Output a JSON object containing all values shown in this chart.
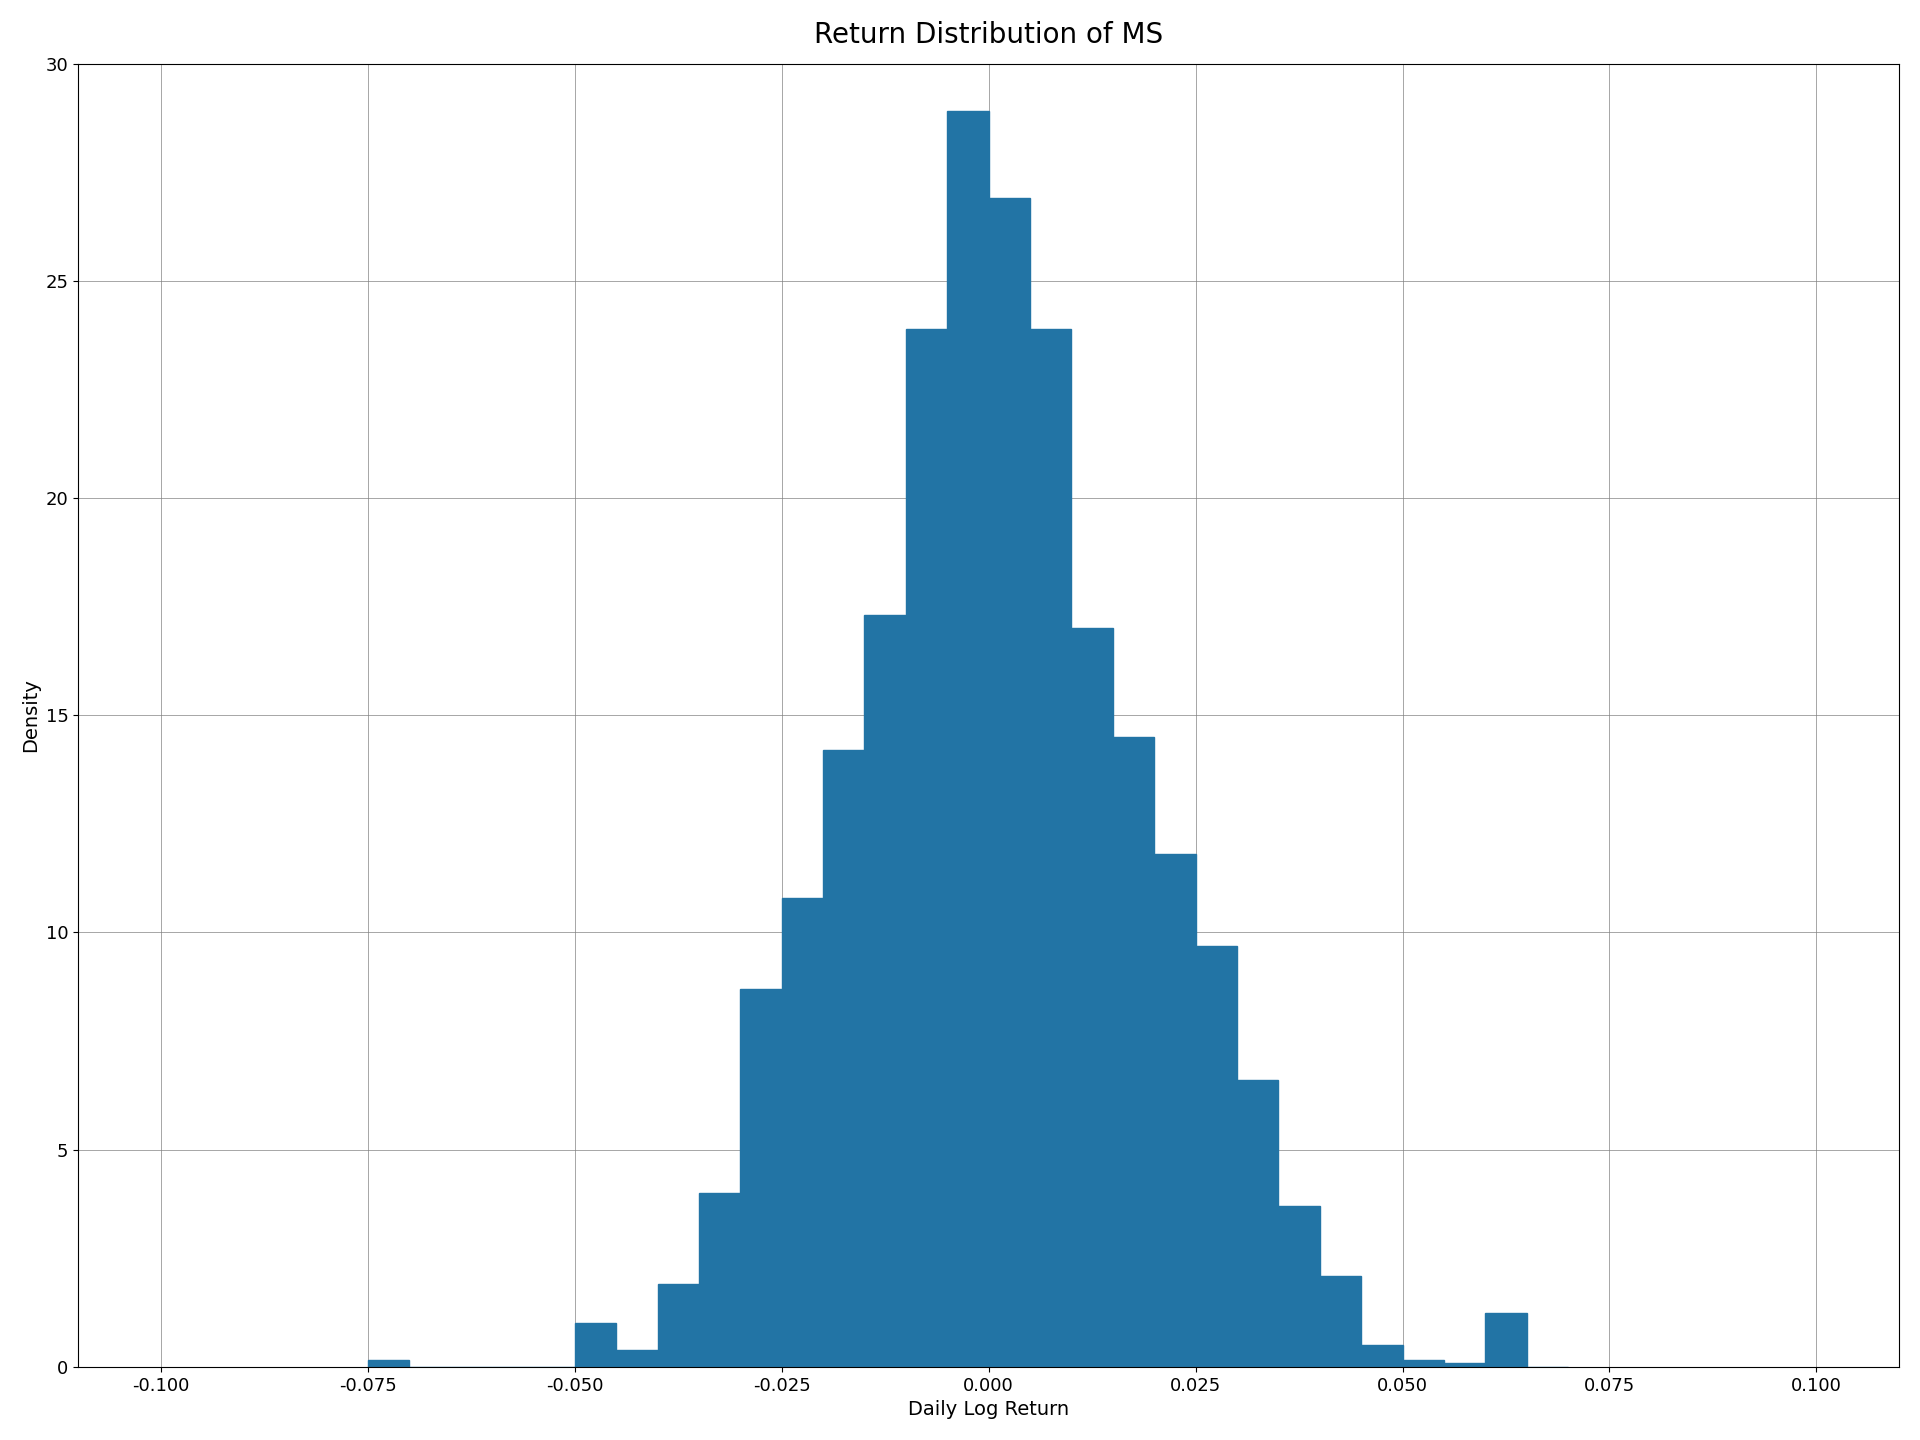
{
  "title": "Return Distribution of MS",
  "xlabel": "Daily Log Return",
  "ylabel": "Density",
  "bar_color": "#2274a5",
  "xlim": [
    -0.11,
    0.11
  ],
  "ylim": [
    0,
    30
  ],
  "bin_width": 0.005,
  "bins_left": [
    -0.075,
    -0.07,
    -0.065,
    -0.06,
    -0.055,
    -0.05,
    -0.045,
    -0.04,
    -0.035,
    -0.03,
    -0.025,
    -0.02,
    -0.015,
    -0.01,
    -0.005,
    0.0,
    0.005,
    0.01,
    0.015,
    0.02,
    0.025,
    0.03,
    0.035,
    0.04,
    0.045,
    0.05,
    0.055,
    0.06,
    0.065
  ],
  "densities": [
    0.15,
    0.0,
    0.0,
    0.0,
    0.0,
    1.0,
    0.4,
    1.9,
    4.0,
    8.7,
    10.8,
    14.2,
    17.3,
    23.9,
    28.9,
    26.9,
    23.9,
    17.0,
    14.5,
    11.8,
    9.7,
    6.6,
    3.7,
    2.1,
    0.5,
    0.15,
    0.1,
    1.25,
    0.0
  ],
  "xticks": [
    -0.1,
    -0.075,
    -0.05,
    -0.025,
    0.0,
    0.025,
    0.05,
    0.075,
    0.1
  ],
  "xtick_labels": [
    "-0.100",
    "-0.075",
    "-0.050",
    "-0.025",
    "0.000",
    "0.025",
    "0.050",
    "0.075",
    "0.100"
  ],
  "yticks": [
    0,
    5,
    10,
    15,
    20,
    25,
    30
  ],
  "title_fontsize": 20,
  "label_fontsize": 14,
  "tick_fontsize": 13
}
